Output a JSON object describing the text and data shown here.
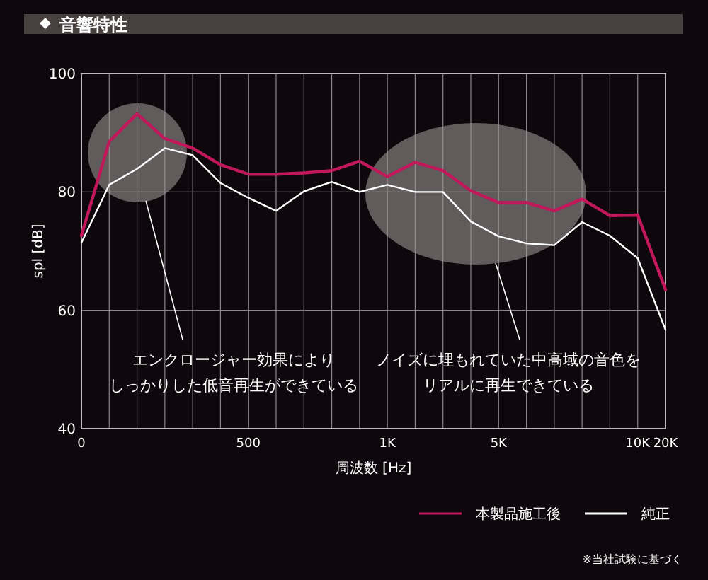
{
  "chart_data": {
    "type": "line",
    "title": "音響特性",
    "xlabel": "周波数 [Hz]",
    "ylabel": "spl [dB]",
    "categories": [
      "0",
      null,
      null,
      null,
      null,
      null,
      "500",
      null,
      null,
      null,
      null,
      "1K",
      null,
      null,
      null,
      "5K",
      null,
      null,
      null,
      null,
      "10K",
      "20K"
    ],
    "series": [
      {
        "name": "本製品施工後",
        "color": "#c0185a",
        "values": [
          72.6,
          88.5,
          93.2,
          89,
          87.4,
          84.6,
          83,
          83,
          83.2,
          83.6,
          85.2,
          82.6,
          85,
          83.6,
          80.2,
          78.2,
          78.2,
          76.8,
          78.8,
          76,
          76.1,
          63.5
        ]
      },
      {
        "name": "純正",
        "color": "#ffffff",
        "values": [
          71.4,
          81.2,
          83.9,
          87.4,
          86.2,
          81.5,
          79,
          76.8,
          80.1,
          81.7,
          80,
          81.2,
          80,
          80,
          75,
          72.5,
          71.3,
          71,
          74.9,
          72.6,
          68.8,
          56.7
        ]
      }
    ],
    "ylim": [
      40,
      100
    ],
    "yticks": [
      40,
      60,
      80,
      100
    ],
    "grid": true,
    "legend": "bottom right",
    "marker": "none",
    "line_style": "solid",
    "annotations": [
      "エンクロージャー効果により",
      "しっかりした低音再生ができている",
      "ノイズに埋もれていた中高域の音色を",
      "リアルに再生できている",
      "※当社試験に基づく"
    ]
  }
}
